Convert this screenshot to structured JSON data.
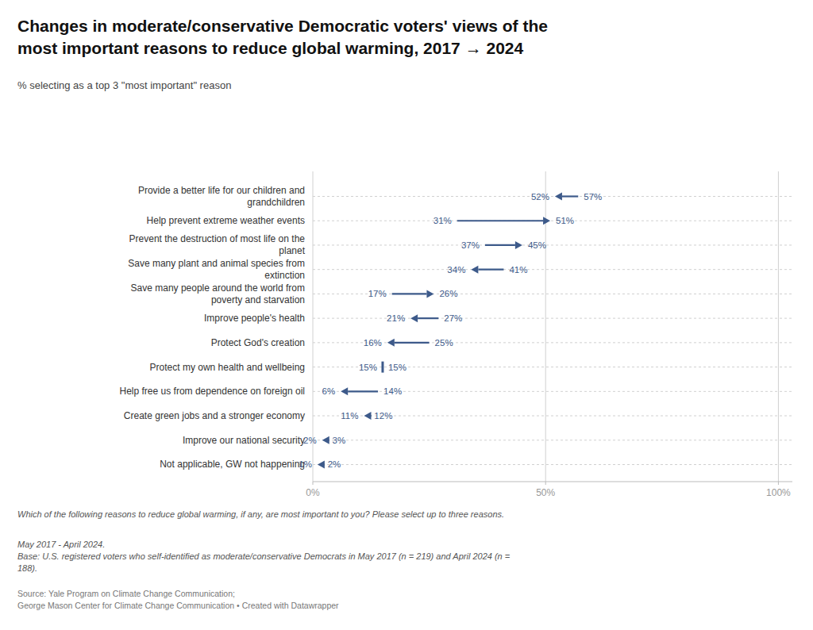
{
  "chart_data": {
    "type": "arrow",
    "orientation": "horizontal",
    "title": "Changes in moderate/conservative Democratic voters' views of the\nmost important reasons to reduce global warming, 2017 → 2024",
    "subtitle": "% selecting as a top 3 \"most important\" reason",
    "categories": [
      "Provide a better life for our children and\ngrandchildren",
      "Help prevent extreme weather events",
      "Prevent the destruction of most life on the\nplanet",
      "Save many plant and animal species from\nextinction",
      "Save many people around the world from\npoverty and starvation",
      "Improve people's health",
      "Protect God's creation",
      "Protect my own health and wellbeing",
      "Help free us from dependence on foreign oil",
      "Create green jobs and a stronger economy",
      "Improve our national security",
      "Not applicable, GW not happening"
    ],
    "series": [
      {
        "values": [
          57,
          31,
          37,
          41,
          17,
          27,
          25,
          15,
          14,
          12,
          3,
          2
        ],
        "value_labels": [
          "57%",
          "31%",
          "37%",
          "41%",
          "17%",
          "27%",
          "25%",
          "15%",
          "14%",
          "12%",
          "3%",
          "2%"
        ]
      },
      {
        "values": [
          52,
          51,
          45,
          34,
          26,
          21,
          16,
          15,
          6,
          11,
          2,
          1
        ],
        "value_labels": [
          "52%",
          "51%",
          "45%",
          "34%",
          "26%",
          "21%",
          "16%",
          "15%",
          "6%",
          "11%",
          "2%",
          "1%"
        ]
      }
    ],
    "color": "#3d5a8a",
    "data_labels": true,
    "grid": true,
    "xlim": [
      0,
      103
    ],
    "xticks": [
      {
        "value": 0,
        "label": "0%"
      },
      {
        "value": 50,
        "label": "50%"
      },
      {
        "value": 100,
        "label": "100%"
      }
    ],
    "annotations": [
      "Which of the following reasons to reduce global warming, if any, are most important to you? Please select up to three reasons.",
      "May 2017 - April 2024.\nBase: U.S. registered voters who self-identified as moderate/conservative Democrats in May 2017 (n = 219) and April 2024 (n =\n188).",
      "Source: Yale Program on Climate Change Communication;\nGeorge Mason Center for Climate Change Communication  • Created with Datawrapper"
    ]
  }
}
